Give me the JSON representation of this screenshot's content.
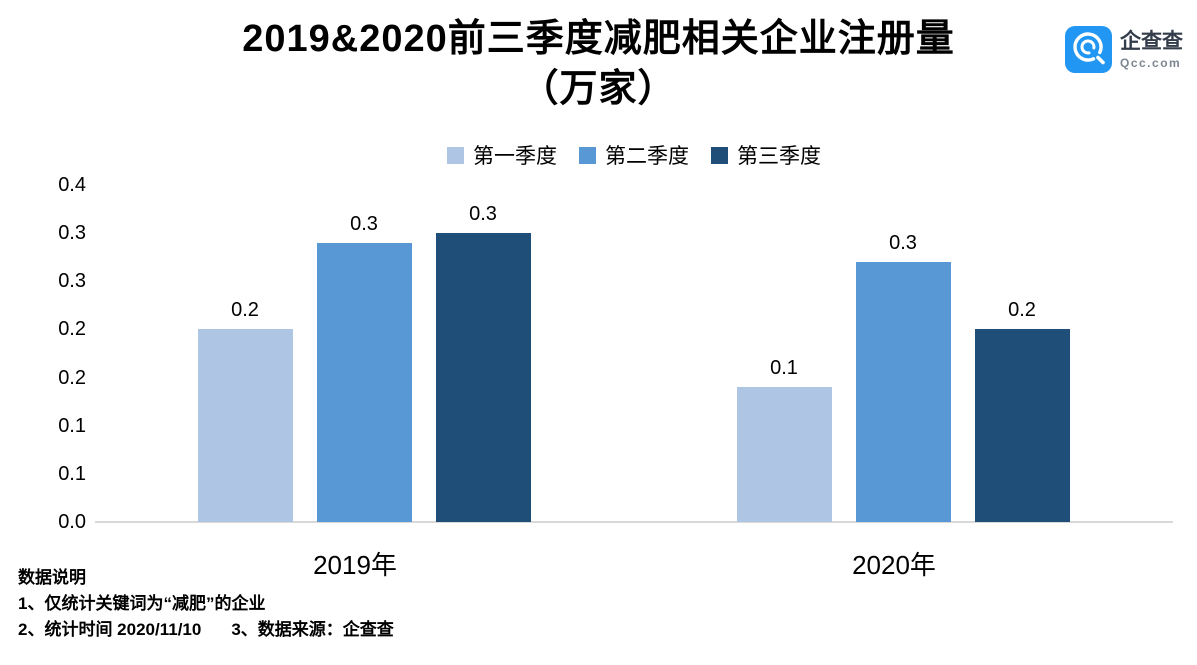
{
  "title": {
    "line1": "2019&2020前三季度减肥相关企业注册量",
    "line2": "（万家）"
  },
  "logo": {
    "name": "企查查",
    "domain": "Qcc.com",
    "icon_color": "#2196f3"
  },
  "notes": {
    "heading": "数据说明",
    "line1": "1、仅统计关键词为“减肥”的企业",
    "line2a": "2、统计时间 2020/11/10",
    "line2b": "3、数据来源：企查查"
  },
  "chart_data": {
    "type": "bar",
    "title": "2019&2020前三季度减肥相关企业注册量（万家）",
    "categories": [
      "2019年",
      "2020年"
    ],
    "series": [
      {
        "name": "第一季度",
        "color": "#aec6e3",
        "values": [
          0.2,
          0.14
        ],
        "labels": [
          "0.2",
          "0.1"
        ]
      },
      {
        "name": "第二季度",
        "color": "#5898d4",
        "values": [
          0.29,
          0.27
        ],
        "labels": [
          "0.3",
          "0.3"
        ]
      },
      {
        "name": "第三季度",
        "color": "#1f4e79",
        "values": [
          0.3,
          0.2
        ],
        "labels": [
          "0.3",
          "0.2"
        ]
      }
    ],
    "ylim": [
      0,
      0.35
    ],
    "yticks": [
      {
        "value": 0.35,
        "label": "0.4"
      },
      {
        "value": 0.3,
        "label": "0.3"
      },
      {
        "value": 0.25,
        "label": "0.3"
      },
      {
        "value": 0.2,
        "label": "0.2"
      },
      {
        "value": 0.15,
        "label": "0.2"
      },
      {
        "value": 0.1,
        "label": "0.1"
      },
      {
        "value": 0.05,
        "label": "0.1"
      },
      {
        "value": 0.0,
        "label": "0.0"
      }
    ],
    "grid": false,
    "legend_position": "top-center",
    "axis_line_color": "#d9d9d9",
    "xlabel": "",
    "ylabel": ""
  }
}
